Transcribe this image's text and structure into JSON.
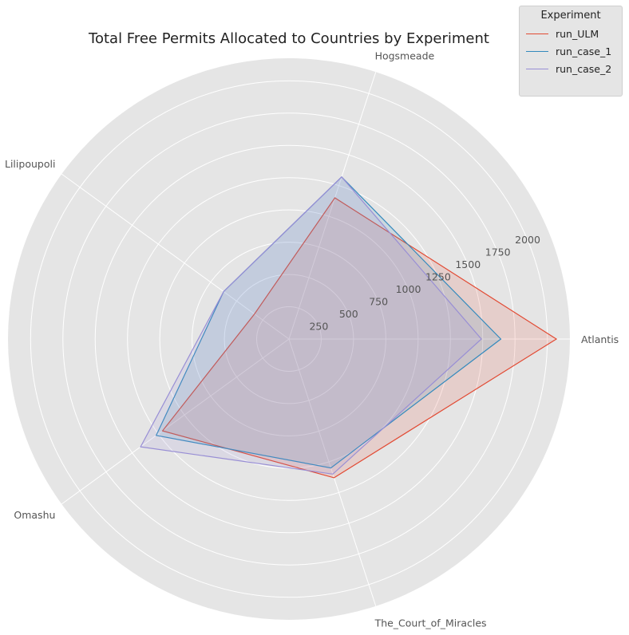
{
  "chart_data": {
    "type": "radar",
    "title": "Total Free Permits Allocated to Countries by Experiment",
    "categories": [
      "Atlantis",
      "Hogsmeade",
      "Lilipoupoli",
      "Omashu",
      "The_Court_of_Miracles"
    ],
    "radial_ticks": [
      250,
      500,
      750,
      1000,
      1250,
      1500,
      1750,
      2000
    ],
    "rmax": 2175,
    "legend_title": "Experiment",
    "legend_position": "top-right",
    "grid": true,
    "series": [
      {
        "name": "run_ULM",
        "color": "#E24A33",
        "values": [
          2070,
          1150,
          330,
          1210,
          1130
        ]
      },
      {
        "name": "run_case_1",
        "color": "#348ABD",
        "values": [
          1640,
          1320,
          625,
          1270,
          1050
        ]
      },
      {
        "name": "run_case_2",
        "color": "#988ED5",
        "values": [
          1490,
          1320,
          625,
          1420,
          1100
        ]
      }
    ]
  }
}
